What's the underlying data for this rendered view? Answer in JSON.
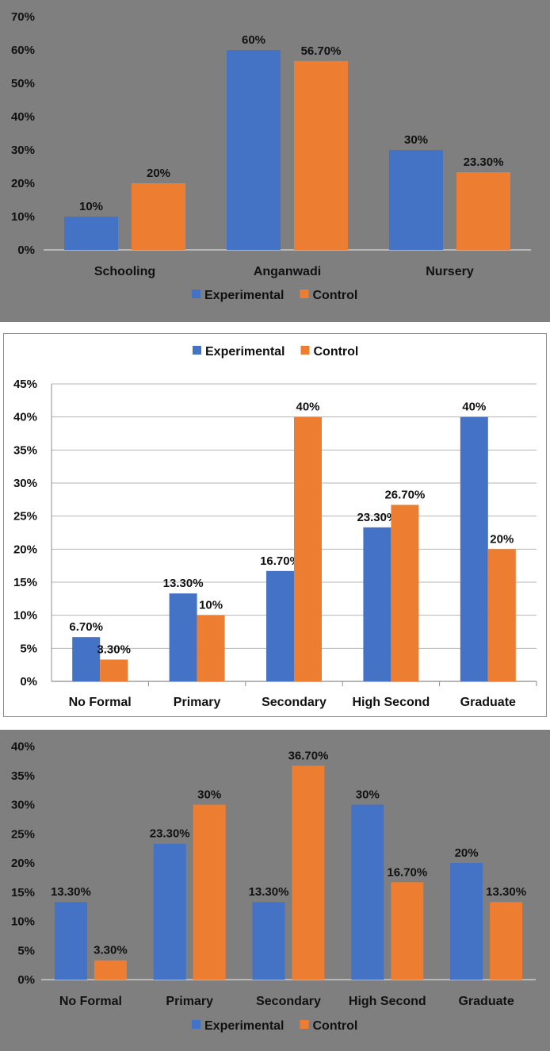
{
  "colors": {
    "experimental": "#4472c4",
    "control": "#ed7d31"
  },
  "chart_data": [
    {
      "type": "bar",
      "categories": [
        "Schooling",
        "Anganwadi",
        "Nursery"
      ],
      "series": [
        {
          "name": "Experimental",
          "values": [
            10,
            60,
            30
          ],
          "labels": [
            "10%",
            "60%",
            "30%"
          ]
        },
        {
          "name": "Control",
          "values": [
            20,
            56.7,
            23.3
          ],
          "labels": [
            "20%",
            "56.70%",
            "23.30%"
          ]
        }
      ],
      "ylim": [
        0,
        70
      ],
      "yticks": [
        "0%",
        "10%",
        "20%",
        "30%",
        "40%",
        "50%",
        "60%",
        "70%"
      ],
      "legend": "bottom",
      "grid": false
    },
    {
      "type": "bar",
      "categories": [
        "No Formal",
        "Primary",
        "Secondary",
        "High Second",
        "Graduate"
      ],
      "series": [
        {
          "name": "Experimental",
          "values": [
            6.7,
            13.3,
            16.7,
            23.3,
            40
          ],
          "labels": [
            "6.70%",
            "13.30%",
            "16.70%",
            "23.30%",
            "40%"
          ]
        },
        {
          "name": "Control",
          "values": [
            3.3,
            10,
            40,
            26.7,
            20
          ],
          "labels": [
            "3.30%",
            "10%",
            "40%",
            "26.70%",
            "20%"
          ]
        }
      ],
      "ylim": [
        0,
        45
      ],
      "yticks": [
        "0%",
        "5%",
        "10%",
        "15%",
        "20%",
        "25%",
        "30%",
        "35%",
        "40%",
        "45%"
      ],
      "legend": "top",
      "grid": true
    },
    {
      "type": "bar",
      "categories": [
        "No Formal",
        "Primary",
        "Secondary",
        "High Second",
        "Graduate"
      ],
      "series": [
        {
          "name": "Experimental",
          "values": [
            13.3,
            23.3,
            13.3,
            30,
            20
          ],
          "labels": [
            "13.30%",
            "23.30%",
            "13.30%",
            "30%",
            "20%"
          ]
        },
        {
          "name": "Control",
          "values": [
            3.3,
            30,
            36.7,
            16.7,
            13.3
          ],
          "labels": [
            "3.30%",
            "30%",
            "36.70%",
            "16.70%",
            "13.30%"
          ]
        }
      ],
      "ylim": [
        0,
        40
      ],
      "yticks": [
        "0%",
        "5%",
        "10%",
        "15%",
        "20%",
        "25%",
        "30%",
        "35%",
        "40%"
      ],
      "legend": "bottom",
      "grid": false
    }
  ]
}
